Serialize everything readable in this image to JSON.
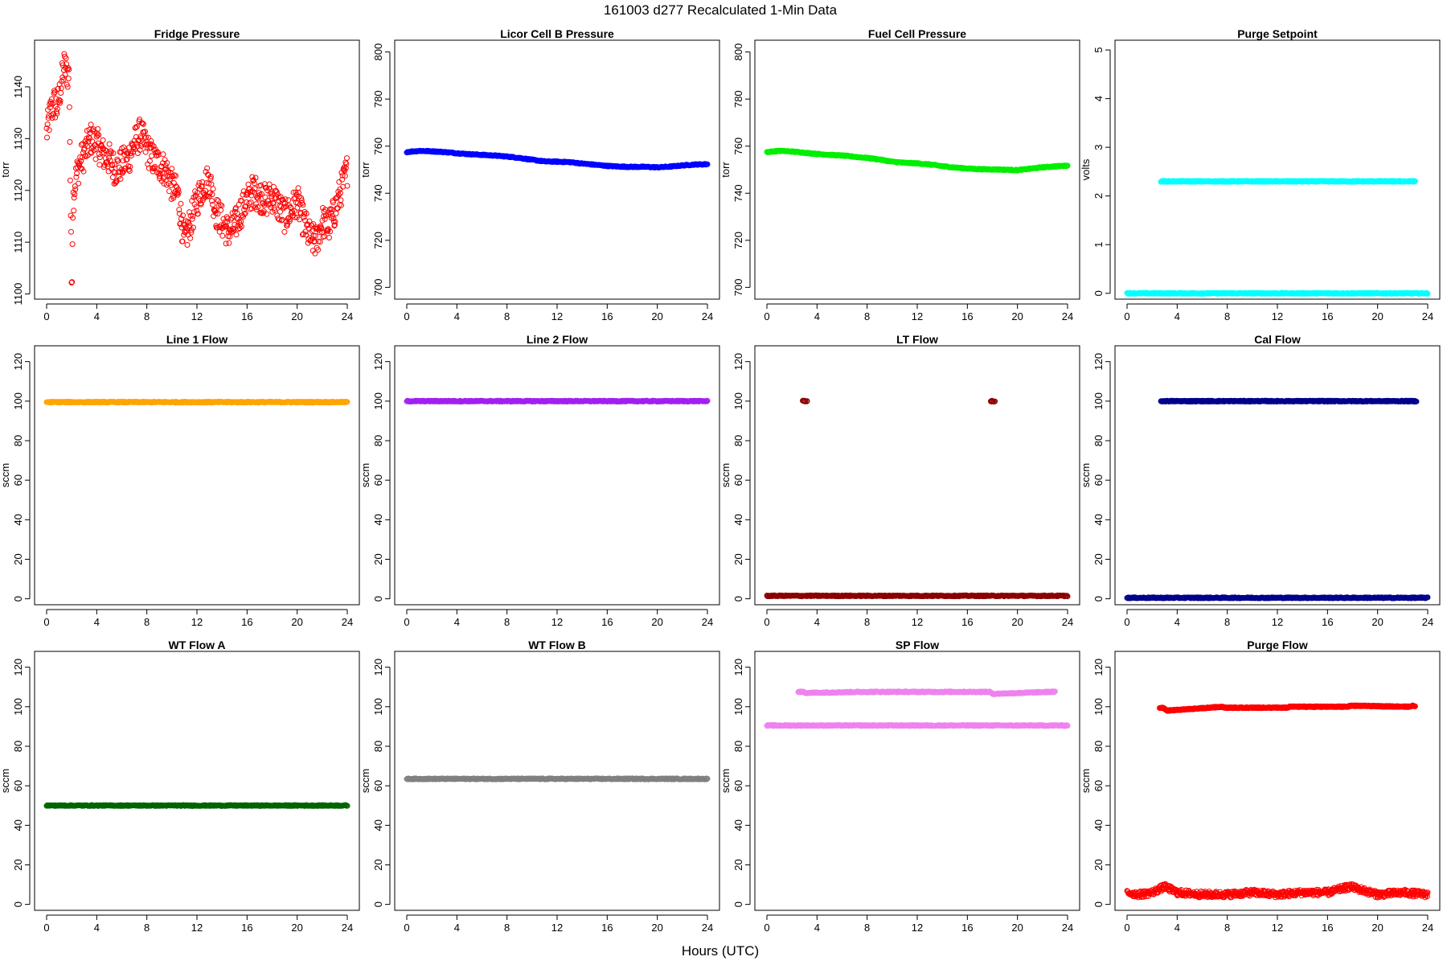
{
  "figure": {
    "title": "161003   d277   Recalculated 1-Min Data",
    "xlabel": "Hours (UTC)"
  },
  "chart_data": [
    {
      "type": "scatter",
      "title": "Fridge Pressure",
      "ylabel": "torr",
      "color": "#ff0000",
      "marker": "open-circle",
      "xlim": [
        0,
        24
      ],
      "xticks": [
        0,
        4,
        8,
        12,
        16,
        20,
        24
      ],
      "ylim": [
        1099,
        1149
      ],
      "yticks": [
        1100,
        1110,
        1120,
        1130,
        1140
      ],
      "series": [
        {
          "x": [
            0,
            0.3,
            0.6,
            0.8,
            1,
            1.2,
            1.4,
            1.6,
            1.8,
            1.9,
            2,
            2.1,
            2.3,
            2.6,
            3,
            3.5,
            4,
            4.5,
            5,
            5.5,
            6,
            6.5,
            7,
            7.5,
            8,
            8.5,
            9,
            9.5,
            10,
            10.5,
            11,
            11.5,
            12,
            12.5,
            13,
            13.5,
            14,
            14.5,
            15,
            15.5,
            16,
            16.5,
            17,
            17.5,
            18,
            18.5,
            19,
            19.5,
            20,
            20.5,
            21,
            21.5,
            22,
            22.5,
            23,
            23.5,
            24
          ],
          "y": [
            1131,
            1135,
            1137,
            1136,
            1138,
            1141,
            1144,
            1143,
            1142,
            1120,
            1101,
            1118,
            1122,
            1125,
            1127,
            1130,
            1129,
            1127,
            1126,
            1124,
            1125,
            1126,
            1129,
            1131,
            1128,
            1126,
            1125,
            1124,
            1121,
            1119,
            1110,
            1114,
            1118,
            1121,
            1122,
            1116,
            1114,
            1112,
            1113,
            1116,
            1118,
            1120,
            1119,
            1118,
            1119,
            1117,
            1115,
            1116,
            1118,
            1114,
            1111,
            1110,
            1114,
            1113,
            1116,
            1120,
            1124
          ]
        }
      ]
    },
    {
      "type": "scatter",
      "title": "Licor Cell B Pressure",
      "ylabel": "torr",
      "color": "#0000ff",
      "marker": "open-circle",
      "xlim": [
        0,
        24
      ],
      "xticks": [
        0,
        4,
        8,
        12,
        16,
        20,
        24
      ],
      "ylim": [
        695,
        805
      ],
      "yticks": [
        700,
        720,
        740,
        760,
        780,
        800
      ],
      "series": [
        {
          "x": [
            0,
            1,
            2,
            3,
            4,
            5,
            6,
            7,
            8,
            9,
            10,
            11,
            12,
            13,
            14,
            15,
            16,
            17,
            18,
            19,
            20,
            21,
            22,
            23,
            24
          ],
          "y": [
            757.5,
            758,
            757.8,
            757.5,
            757,
            756.6,
            756.3,
            756,
            755.6,
            755,
            754.2,
            753.5,
            753.4,
            753.2,
            752.6,
            752.1,
            751.6,
            751.3,
            751.2,
            751.2,
            751,
            751.3,
            751.8,
            752.2,
            752.3
          ]
        }
      ]
    },
    {
      "type": "scatter",
      "title": "Fuel Cell Pressure",
      "ylabel": "torr",
      "color": "#00ee00",
      "marker": "open-circle",
      "xlim": [
        0,
        24
      ],
      "xticks": [
        0,
        4,
        8,
        12,
        16,
        20,
        24
      ],
      "ylim": [
        695,
        805
      ],
      "yticks": [
        700,
        720,
        740,
        760,
        780,
        800
      ],
      "series": [
        {
          "x": [
            0,
            1,
            2,
            3,
            4,
            5,
            6,
            7,
            8,
            9,
            10,
            11,
            12,
            13,
            14,
            15,
            16,
            17,
            18,
            19,
            20,
            21,
            22,
            23,
            24
          ],
          "y": [
            757.5,
            758,
            757.7,
            757.2,
            756.7,
            756.3,
            756,
            755.5,
            755,
            754.3,
            753.4,
            752.9,
            752.7,
            752.2,
            751.5,
            750.9,
            750.5,
            750.2,
            750.1,
            750,
            749.8,
            750.4,
            751,
            751.4,
            751.7
          ]
        }
      ]
    },
    {
      "type": "scatter",
      "title": "Purge Setpoint",
      "ylabel": "volts",
      "color": "#00ffff",
      "marker": "open-circle",
      "xlim": [
        0,
        24
      ],
      "xticks": [
        0,
        4,
        8,
        12,
        16,
        20,
        24
      ],
      "ylim": [
        -0.12,
        5.2
      ],
      "yticks": [
        0,
        1,
        2,
        3,
        4,
        5
      ],
      "series": [
        {
          "x": [
            0,
            4,
            8,
            12,
            16,
            20,
            24
          ],
          "y": [
            0,
            0,
            0,
            0,
            0,
            0,
            0
          ]
        },
        {
          "x": [
            2.7,
            2.9,
            3.1,
            7.6,
            7.75,
            12.6,
            12.75,
            12.9,
            17.6,
            17.75,
            22.7,
            22.85,
            23.0
          ],
          "y": [
            2.3,
            2.3,
            2.3,
            2.3,
            2.3,
            2.3,
            2.3,
            2.3,
            2.3,
            2.3,
            2.3,
            2.3,
            2.3
          ]
        }
      ]
    },
    {
      "type": "scatter",
      "title": "Line 1 Flow",
      "ylabel": "sccm",
      "color": "#ffa500",
      "marker": "open-circle",
      "xlim": [
        0,
        24
      ],
      "xticks": [
        0,
        4,
        8,
        12,
        16,
        20,
        24
      ],
      "ylim": [
        -3,
        128
      ],
      "yticks": [
        0,
        20,
        40,
        60,
        80,
        100,
        120
      ],
      "series": [
        {
          "x": [
            0,
            4,
            8,
            12,
            16,
            20,
            24
          ],
          "y": [
            99.5,
            99.5,
            99.5,
            99.5,
            99.5,
            99.5,
            99.5
          ]
        }
      ]
    },
    {
      "type": "scatter",
      "title": "Line 2 Flow",
      "ylabel": "sccm",
      "color": "#a020f0",
      "marker": "open-circle",
      "xlim": [
        0,
        24
      ],
      "xticks": [
        0,
        4,
        8,
        12,
        16,
        20,
        24
      ],
      "ylim": [
        -3,
        128
      ],
      "yticks": [
        0,
        20,
        40,
        60,
        80,
        100,
        120
      ],
      "series": [
        {
          "x": [
            0,
            4,
            8,
            12,
            16,
            20,
            24
          ],
          "y": [
            100,
            100,
            100,
            100,
            100,
            100,
            100
          ]
        }
      ]
    },
    {
      "type": "scatter",
      "title": "LT Flow",
      "ylabel": "sccm",
      "color": "#8b0000",
      "marker": "open-circle",
      "xlim": [
        0,
        24
      ],
      "xticks": [
        0,
        4,
        8,
        12,
        16,
        20,
        24
      ],
      "ylim": [
        -3,
        128
      ],
      "yticks": [
        0,
        20,
        40,
        60,
        80,
        100,
        120
      ],
      "series": [
        {
          "x": [
            0,
            4,
            8,
            12,
            16,
            20,
            24
          ],
          "y": [
            1.5,
            1.5,
            1.5,
            1.5,
            1.5,
            1.5,
            1.5
          ]
        },
        {
          "x": [
            2.9,
            3.0,
            3.15,
            17.9,
            18.0,
            18.15
          ],
          "y": [
            100,
            100,
            100,
            100,
            100,
            100
          ]
        }
      ]
    },
    {
      "type": "scatter",
      "title": "Cal Flow",
      "ylabel": "sccm",
      "color": "#00008b",
      "marker": "open-circle",
      "xlim": [
        0,
        24
      ],
      "xticks": [
        0,
        4,
        8,
        12,
        16,
        20,
        24
      ],
      "ylim": [
        -3,
        128
      ],
      "yticks": [
        0,
        20,
        40,
        60,
        80,
        100,
        120
      ],
      "series": [
        {
          "x": [
            0,
            4,
            8,
            12,
            16,
            20,
            24
          ],
          "y": [
            0.5,
            0.5,
            0.5,
            0.5,
            0.5,
            0.5,
            0.5
          ]
        },
        {
          "x": [
            2.7,
            2.9,
            3.1,
            7.6,
            7.8,
            12.6,
            12.8,
            13.0,
            17.6,
            17.8,
            22.7,
            22.9,
            23.1
          ],
          "y": [
            100,
            100,
            100,
            100,
            100,
            100,
            100,
            100,
            100,
            100,
            100,
            100,
            100
          ]
        }
      ]
    },
    {
      "type": "scatter",
      "title": "WT Flow A",
      "ylabel": "sccm",
      "color": "#006400",
      "marker": "open-circle",
      "xlim": [
        0,
        24
      ],
      "xticks": [
        0,
        4,
        8,
        12,
        16,
        20,
        24
      ],
      "ylim": [
        -3,
        128
      ],
      "yticks": [
        0,
        20,
        40,
        60,
        80,
        100,
        120
      ],
      "series": [
        {
          "x": [
            0,
            4,
            8,
            12,
            16,
            20,
            24
          ],
          "y": [
            50,
            50,
            50,
            50,
            50,
            50,
            50
          ]
        }
      ]
    },
    {
      "type": "scatter",
      "title": "WT Flow B",
      "ylabel": "sccm",
      "color": "#808080",
      "marker": "open-circle",
      "xlim": [
        0,
        24
      ],
      "xticks": [
        0,
        4,
        8,
        12,
        16,
        20,
        24
      ],
      "ylim": [
        -3,
        128
      ],
      "yticks": [
        0,
        20,
        40,
        60,
        80,
        100,
        120
      ],
      "series": [
        {
          "x": [
            0,
            4,
            8,
            12,
            16,
            20,
            24
          ],
          "y": [
            63.5,
            63.5,
            63.5,
            63.5,
            63.5,
            63.5,
            63.5
          ]
        }
      ]
    },
    {
      "type": "scatter",
      "title": "SP Flow",
      "ylabel": "sccm",
      "color": "#ee82ee",
      "marker": "open-circle",
      "xlim": [
        0,
        24
      ],
      "xticks": [
        0,
        4,
        8,
        12,
        16,
        20,
        24
      ],
      "ylim": [
        -3,
        128
      ],
      "yticks": [
        0,
        20,
        40,
        60,
        80,
        100,
        120
      ],
      "series": [
        {
          "x": [
            0,
            4,
            8,
            12,
            16,
            20,
            24
          ],
          "y": [
            90.5,
            90.5,
            90.5,
            90.5,
            90.5,
            90.5,
            90.5
          ]
        },
        {
          "x": [
            2.5,
            2.7,
            2.9,
            3.1,
            7.7,
            7.9,
            12.7,
            12.9,
            13.1,
            17.6,
            17.8,
            18.0,
            22.6,
            22.8,
            23.0
          ],
          "y": [
            107.5,
            107.5,
            107.5,
            107,
            107.5,
            107.5,
            107.5,
            107.5,
            107.5,
            107.5,
            107.5,
            106.5,
            107.5,
            107.5,
            107.5
          ]
        }
      ]
    },
    {
      "type": "scatter",
      "title": "Purge Flow",
      "ylabel": "sccm",
      "color": "#ff0000",
      "marker": "open-circle",
      "xlim": [
        0,
        24
      ],
      "xticks": [
        0,
        4,
        8,
        12,
        16,
        20,
        24
      ],
      "ylim": [
        -3,
        128
      ],
      "yticks": [
        0,
        20,
        40,
        60,
        80,
        100,
        120
      ],
      "series": [
        {
          "x": [
            0,
            1,
            2,
            3,
            4,
            6,
            8,
            10,
            12,
            14,
            16,
            17.8,
            20,
            22,
            24
          ],
          "y": [
            6,
            5,
            6,
            9,
            6,
            5,
            5,
            6,
            5,
            6,
            6,
            9,
            5,
            6,
            5
          ]
        },
        {
          "x": [
            2.6,
            2.8,
            3.0,
            3.2,
            7.6,
            7.8,
            12.6,
            12.8,
            13.0,
            17.6,
            17.8,
            22.6,
            22.8,
            23.0
          ],
          "y": [
            99.5,
            99.5,
            99,
            98,
            100,
            99.5,
            99.5,
            99.5,
            100,
            100,
            100.5,
            100,
            100.5,
            100
          ]
        }
      ]
    }
  ]
}
